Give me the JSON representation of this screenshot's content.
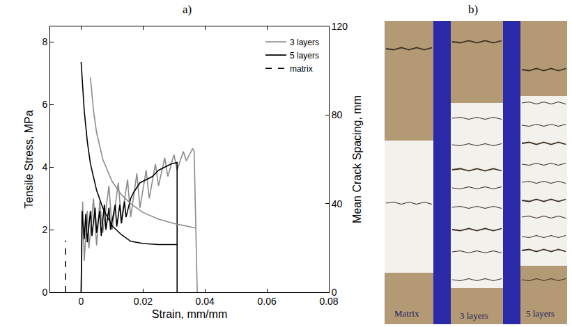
{
  "panel_labels": [
    "a)",
    "b)"
  ],
  "chart_data": {
    "type": "line",
    "x_label": "Strain, mm/mm",
    "y_label": "Tensile Stress, MPa",
    "y2_label": "Mean Crack Spacing, mm",
    "xlim": [
      -0.01,
      0.08
    ],
    "xticks": [
      0,
      0.02,
      0.04,
      0.06,
      0.08
    ],
    "ylim": [
      0,
      8.5
    ],
    "yticks": [
      0,
      2,
      4,
      6,
      8
    ],
    "y2lim": [
      0,
      120
    ],
    "y2ticks": [
      0,
      40,
      80,
      120
    ],
    "legend": "top right",
    "grid": false,
    "series": [
      {
        "name": "3 layers",
        "color": "#8c8c8c",
        "line_style": "solid",
        "x": [
          0,
          0.0005,
          0.001,
          0.002,
          0.0025,
          0.004,
          0.005,
          0.006,
          0.007,
          0.009,
          0.01,
          0.012,
          0.013,
          0.015,
          0.016,
          0.018,
          0.019,
          0.021,
          0.022,
          0.024,
          0.025,
          0.027,
          0.028,
          0.03,
          0.031,
          0.033,
          0.034,
          0.036,
          0.0365,
          0.0375
        ],
        "values": [
          0,
          2.9,
          1.0,
          2.6,
          1.4,
          3.0,
          1.5,
          2.9,
          1.9,
          3.4,
          2.0,
          3.5,
          2.3,
          3.6,
          2.4,
          3.8,
          2.7,
          3.9,
          3.0,
          4.1,
          3.4,
          4.3,
          3.7,
          4.4,
          3.9,
          4.5,
          4.2,
          4.6,
          4.5,
          0
        ]
      },
      {
        "name": "5 layers",
        "color": "#000000",
        "line_style": "solid",
        "x": [
          0,
          0.0003,
          0.001,
          0.0015,
          0.002,
          0.003,
          0.0035,
          0.0045,
          0.005,
          0.006,
          0.0065,
          0.0075,
          0.008,
          0.009,
          0.0095,
          0.011,
          0.0115,
          0.0125,
          0.013,
          0.014,
          0.0145,
          0.016,
          0.017,
          0.019,
          0.021,
          0.023,
          0.025,
          0.027,
          0.029,
          0.031,
          0.031
        ],
        "values": [
          0,
          2.6,
          1.7,
          2.5,
          1.6,
          2.6,
          1.8,
          2.7,
          1.9,
          2.6,
          1.8,
          2.8,
          2.0,
          2.7,
          2.0,
          2.8,
          2.1,
          2.8,
          2.2,
          2.9,
          2.4,
          3.0,
          3.2,
          3.5,
          3.6,
          3.7,
          3.9,
          4.0,
          4.1,
          4.15,
          0
        ]
      },
      {
        "name": "matrix",
        "color": "#000000",
        "line_style": "dash",
        "x": [
          -0.005,
          -0.005
        ],
        "values": [
          0,
          1.65
        ]
      },
      {
        "name": "3 layers",
        "color": "#8c8c8c",
        "line_style": "solid",
        "axis": "y2",
        "x": [
          0.003,
          0.004,
          0.005,
          0.007,
          0.01,
          0.013,
          0.016,
          0.02,
          0.025,
          0.03,
          0.037
        ],
        "values": [
          97,
          82,
          72,
          60,
          50,
          44,
          40,
          36,
          33,
          31,
          29
        ]
      },
      {
        "name": "5 layers",
        "color": "#000000",
        "line_style": "solid",
        "axis": "y2",
        "x": [
          0,
          0.001,
          0.002,
          0.003,
          0.005,
          0.007,
          0.01,
          0.013,
          0.016,
          0.02,
          0.025,
          0.031
        ],
        "values": [
          104,
          82,
          68,
          58,
          46,
          38,
          30,
          26,
          23,
          22,
          21.5,
          21.5
        ]
      }
    ]
  },
  "photo": {
    "labels": [
      "Matrix",
      "3 layers",
      "5 layers"
    ]
  }
}
